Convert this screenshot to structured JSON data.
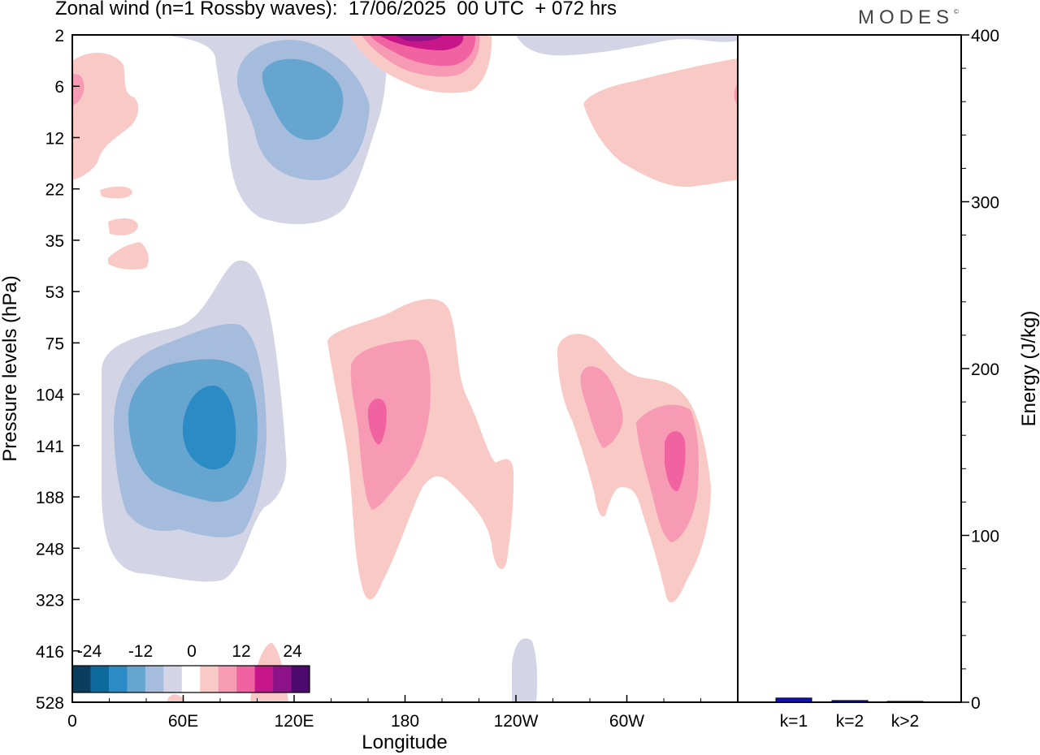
{
  "title": "Zonal wind (n=1 Rossby waves):  17/06/2025  00 UTC  + 072 hrs",
  "brand": "MODES",
  "brand_mark": "©",
  "colors": {
    "scale": [
      "#0b3d5e",
      "#0e6a9c",
      "#2b8bc4",
      "#65a5cf",
      "#a5bcdc",
      "#d3d5e7",
      "#ffffff",
      "#f9c9c5",
      "#f79bb4",
      "#f062a0",
      "#c7168a",
      "#8d1188",
      "#4d0a6e"
    ],
    "bar": "#1010c8"
  },
  "colorbar": {
    "labels": [
      "-24",
      "-12",
      "0",
      "12",
      "24"
    ]
  },
  "chart_data": [
    {
      "type": "heatmap",
      "title": "Zonal wind (n=1 Rossby waves):  17/06/2025  00 UTC  + 072 hrs",
      "xlabel": "Longitude",
      "ylabel": "Pressure levels (hPa)",
      "x_ticks": [
        "0",
        "60E",
        "120E",
        "180",
        "120W",
        "60W"
      ],
      "y_ticks": [
        "2",
        "6",
        "12",
        "22",
        "35",
        "53",
        "75",
        "104",
        "141",
        "188",
        "248",
        "323",
        "416",
        "528"
      ],
      "xlim": [
        0,
        360
      ],
      "contour_levels": [
        -24,
        -20,
        -16,
        -12,
        -8,
        -4,
        4,
        8,
        12,
        16,
        20,
        24
      ]
    },
    {
      "type": "bar",
      "categories": [
        "k=1",
        "k=2",
        "k>2"
      ],
      "values": [
        2.5,
        1.0,
        0.5
      ],
      "ylabel": "Energy (J/kg)",
      "ylim": [
        0,
        400
      ],
      "y_ticks": [
        "0",
        "100",
        "200",
        "300",
        "400"
      ]
    }
  ]
}
